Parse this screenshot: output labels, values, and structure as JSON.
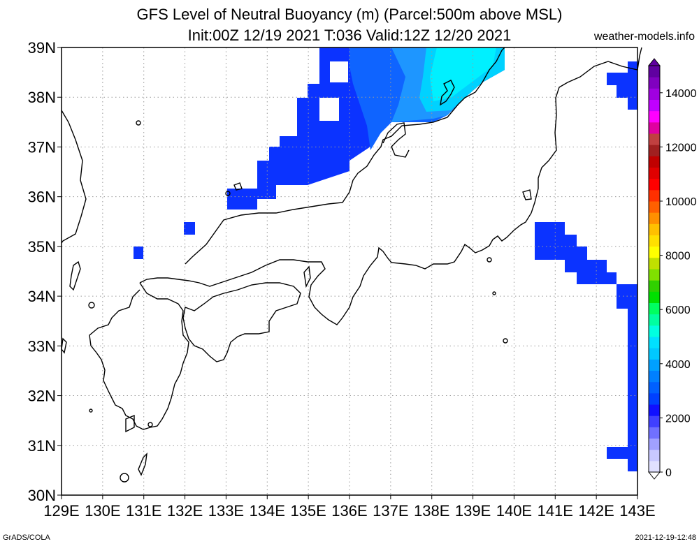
{
  "title_line1": "GFS Level of Neutral Buoyancy (m) (Parcel:500m above MSL)",
  "title_line2": "Init:00Z 12/19 2021 T:036 Valid:12Z 12/20 2021",
  "site": "weather-models.info",
  "footer_left": "GrADS/COLA",
  "footer_right": "2021-12-19-12:48",
  "lon_labels": [
    "129E",
    "130E",
    "131E",
    "132E",
    "133E",
    "134E",
    "135E",
    "136E",
    "137E",
    "138E",
    "139E",
    "140E",
    "141E",
    "142E",
    "143E"
  ],
  "lat_labels": [
    "30N",
    "31N",
    "32N",
    "33N",
    "34N",
    "35N",
    "36N",
    "37N",
    "38N",
    "39N"
  ],
  "colorbar_labels": [
    "0",
    "2000",
    "4000",
    "6000",
    "8000",
    "10000",
    "12000",
    "14000"
  ],
  "colorbar_colors": [
    "#e0e0ff",
    "#c8c8ff",
    "#a0a0ff",
    "#7070ff",
    "#4040ff",
    "#1010ff",
    "#0040ff",
    "#0060ff",
    "#0080ff",
    "#00a0ff",
    "#00c8ff",
    "#00e0ff",
    "#00ffe0",
    "#00ffa0",
    "#00ff60",
    "#00e000",
    "#30d000",
    "#80e000",
    "#c0e000",
    "#ffff00",
    "#ffe000",
    "#ffc000",
    "#ff9000",
    "#ff6000",
    "#ff3000",
    "#ff0000",
    "#e00000",
    "#c00000",
    "#a02020",
    "#c04040",
    "#e000a0",
    "#ff00ff",
    "#c000ff",
    "#a000e0",
    "#8000c0",
    "#6000a0"
  ],
  "chart_data": {
    "type": "heatmap",
    "title": "GFS Level of Neutral Buoyancy (m) (Parcel:500m above MSL)",
    "subtitle": "Init:00Z 12/19 2021 T:036 Valid:12Z 12/20 2021",
    "lon_range": [
      129,
      143
    ],
    "lat_range": [
      30,
      39
    ],
    "units": "m",
    "scale_range": [
      0,
      15000
    ],
    "cells": [
      {
        "lon": 135.5,
        "lat": 38.5,
        "value": 1800
      },
      {
        "lon": 136.5,
        "lat": 38.5,
        "value": 2300
      },
      {
        "lon": 137.5,
        "lat": 38.5,
        "value": 3200
      },
      {
        "lon": 138.5,
        "lat": 38.5,
        "value": 3500
      },
      {
        "lon": 135.5,
        "lat": 37.5,
        "value": 1800
      },
      {
        "lon": 136.5,
        "lat": 37.5,
        "value": 2200
      },
      {
        "lon": 137.5,
        "lat": 37.5,
        "value": 3000
      },
      {
        "lon": 134.5,
        "lat": 36.5,
        "value": 1700
      },
      {
        "lon": 135.5,
        "lat": 36.5,
        "value": 1800
      },
      {
        "lon": 133.5,
        "lat": 36.0,
        "value": 1700
      },
      {
        "lon": 132.1,
        "lat": 35.4,
        "value": 1700
      },
      {
        "lon": 130.9,
        "lat": 34.9,
        "value": 1700
      },
      {
        "lon": 141.0,
        "lat": 35.0,
        "value": 1800
      },
      {
        "lon": 142.0,
        "lat": 34.6,
        "value": 1700
      },
      {
        "lon": 142.8,
        "lat": 38.4,
        "value": 1700
      },
      {
        "lon": 142.8,
        "lat": 32.5,
        "value": 1800
      }
    ]
  }
}
